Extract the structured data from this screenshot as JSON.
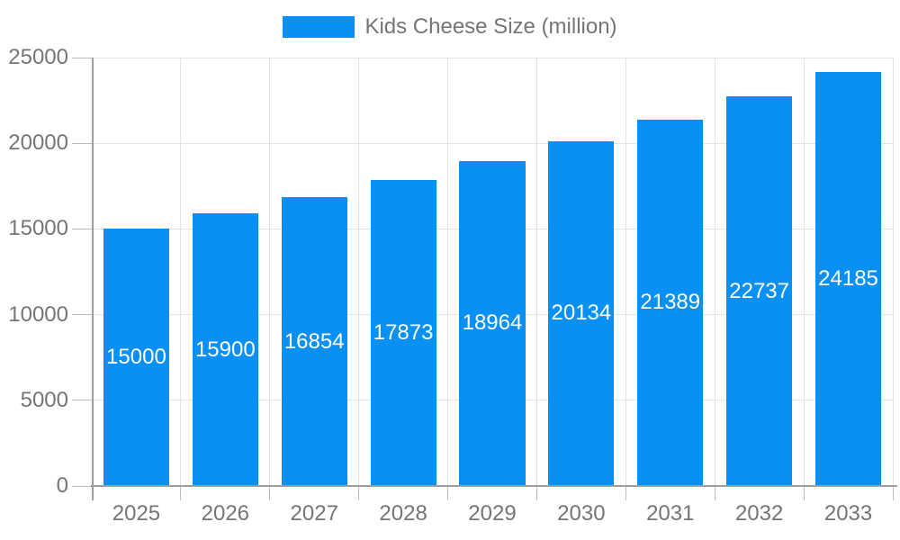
{
  "legend": {
    "label": "Kids Cheese Size (million)"
  },
  "colors": {
    "bar": "#0890f5",
    "grid": "#e3e3e3",
    "axis": "#9e9e9e",
    "tick": "#bdbdbd",
    "tick_text": "#757575",
    "value_label_text": "#ffffff",
    "background": "#ffffff"
  },
  "chart_data": {
    "type": "bar",
    "title": "",
    "categories": [
      "2025",
      "2026",
      "2027",
      "2028",
      "2029",
      "2030",
      "2031",
      "2032",
      "2033"
    ],
    "values": [
      15000,
      15900,
      16854,
      17873,
      18964,
      20134,
      21389,
      22737,
      24185
    ],
    "series_name": "Kids Cheese Size (million)",
    "xlabel": "",
    "ylabel": "",
    "ylim": [
      0,
      25000
    ],
    "ytick_step": 5000,
    "ytick_labels": [
      "0",
      "5000",
      "10000",
      "15000",
      "20000",
      "25000"
    ],
    "grid": true,
    "legend_position": "top",
    "value_labels_position": "inside-center"
  }
}
